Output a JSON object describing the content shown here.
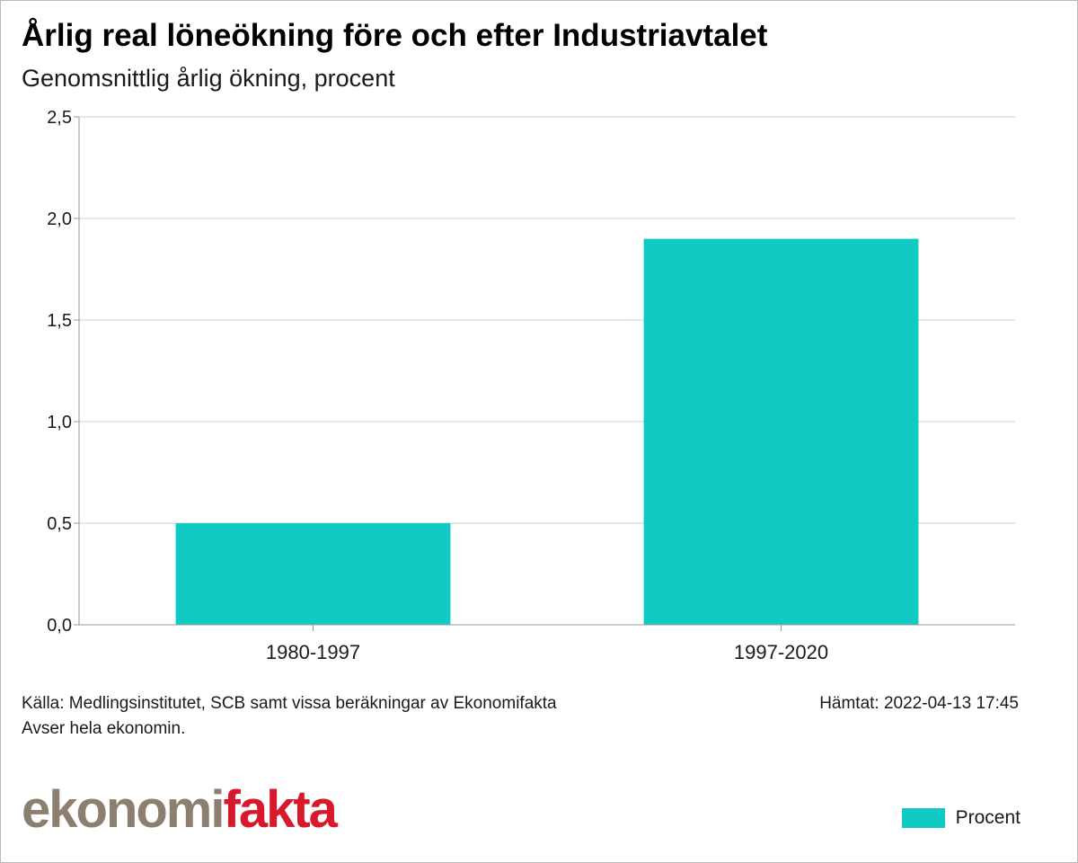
{
  "chart_data": {
    "type": "bar",
    "title": "Årlig real löneökning före och efter Industriavtalet",
    "subtitle": "Genomsnittlig årlig ökning, procent",
    "categories": [
      "1980-1997",
      "1997-2020"
    ],
    "series": [
      {
        "name": "Procent",
        "values": [
          0.5,
          1.9
        ],
        "color": "#12cac4"
      }
    ],
    "ylim": [
      0,
      2.5
    ],
    "yticks": [
      0,
      0.5,
      1.0,
      1.5,
      2.0,
      2.5
    ],
    "ytick_labels": [
      "0,0",
      "0,5",
      "1,0",
      "1,5",
      "2,0",
      "2,5"
    ],
    "xlabel": "",
    "ylabel": "",
    "grid": true,
    "legend": "bottom-right"
  },
  "footer": {
    "source": "Källa: Medlingsinstitutet, SCB samt vissa beräkningar av Ekonomifakta",
    "scope": "Avser hela ekonomin.",
    "fetched": "Hämtat: 2022-04-13 17:45"
  },
  "logo": {
    "part1": "ekonomi",
    "part2": "fakta",
    "color1": "#8d7f6f",
    "color2": "#d7192b"
  },
  "legend": {
    "label": "Procent",
    "color": "#12cac4"
  }
}
